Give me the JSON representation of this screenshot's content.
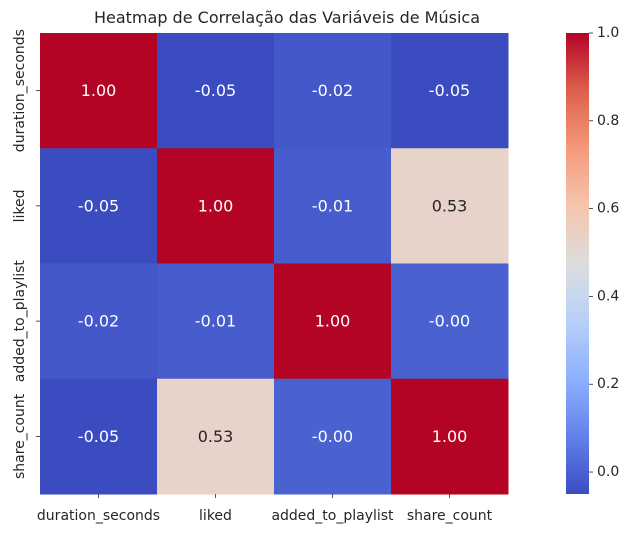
{
  "chart_data": {
    "type": "heatmap",
    "title": "Heatmap de Correlação das Variáveis de Música",
    "x_categories": [
      "duration_seconds",
      "liked",
      "added_to_playlist",
      "share_count"
    ],
    "y_categories": [
      "duration_seconds",
      "liked",
      "added_to_playlist",
      "share_count"
    ],
    "values": [
      [
        1.0,
        -0.05,
        -0.02,
        -0.05
      ],
      [
        -0.05,
        1.0,
        -0.01,
        0.53
      ],
      [
        -0.02,
        -0.01,
        1.0,
        -0.0
      ],
      [
        -0.05,
        0.53,
        -0.0,
        1.0
      ]
    ],
    "cell_labels": [
      [
        "1.00",
        "-0.05",
        "-0.02",
        "-0.05"
      ],
      [
        "-0.05",
        "1.00",
        "-0.01",
        "0.53"
      ],
      [
        "-0.02",
        "-0.01",
        "1.00",
        "-0.00"
      ],
      [
        "-0.05",
        "0.53",
        "-0.00",
        "1.00"
      ]
    ],
    "colormap": "coolwarm",
    "vmin": -0.05,
    "vmax": 1.0,
    "colorbar": {
      "ticks": [
        0.0,
        0.2,
        0.4,
        0.6,
        0.8,
        1.0
      ],
      "tick_labels": [
        "0.0",
        "0.2",
        "0.4",
        "0.6",
        "0.8",
        "1.0"
      ]
    },
    "xlabel": "",
    "ylabel": "",
    "grid": false
  }
}
